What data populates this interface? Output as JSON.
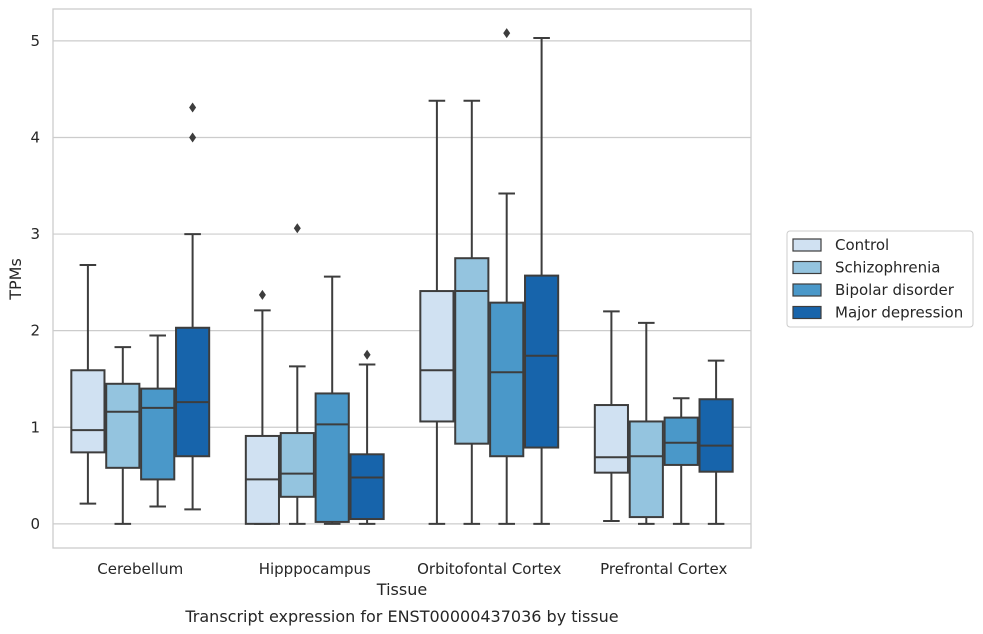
{
  "caption": "Transcript expression for ENST00000437036 by tissue",
  "chart_data": {
    "type": "box",
    "xlabel": "Tissue",
    "ylabel": "TPMs",
    "ylim": [
      -0.25,
      5.33
    ],
    "yticks": [
      0,
      1,
      2,
      3,
      4,
      5
    ],
    "grid": "horizontal",
    "legend_position": "right",
    "categories": [
      "Cerebellum",
      "Hipppocampus",
      "Orbitofontal Cortex",
      "Prefrontal Cortex"
    ],
    "series": [
      {
        "name": "Control",
        "color": "#d0e1f2",
        "boxes": [
          {
            "whislo": 0.21,
            "q1": 0.74,
            "med": 0.97,
            "q3": 1.59,
            "whishi": 2.68,
            "fliers": []
          },
          {
            "whislo": 0.0,
            "q1": 0.0,
            "med": 0.46,
            "q3": 0.91,
            "whishi": 2.21,
            "fliers": [
              2.37
            ]
          },
          {
            "whislo": 0.0,
            "q1": 1.06,
            "med": 1.59,
            "q3": 2.41,
            "whishi": 4.38,
            "fliers": []
          },
          {
            "whislo": 0.03,
            "q1": 0.53,
            "med": 0.69,
            "q3": 1.23,
            "whishi": 2.2,
            "fliers": []
          }
        ]
      },
      {
        "name": "Schizophrenia",
        "color": "#94c4df",
        "boxes": [
          {
            "whislo": 0.0,
            "q1": 0.58,
            "med": 1.16,
            "q3": 1.45,
            "whishi": 1.83,
            "fliers": []
          },
          {
            "whislo": 0.0,
            "q1": 0.28,
            "med": 0.52,
            "q3": 0.94,
            "whishi": 1.63,
            "fliers": [
              3.06
            ]
          },
          {
            "whislo": 0.0,
            "q1": 0.83,
            "med": 2.41,
            "q3": 2.75,
            "whishi": 4.38,
            "fliers": []
          },
          {
            "whislo": 0.0,
            "q1": 0.07,
            "med": 0.7,
            "q3": 1.06,
            "whishi": 2.08,
            "fliers": []
          }
        ]
      },
      {
        "name": "Bipolar disorder",
        "color": "#4a98c9",
        "boxes": [
          {
            "whislo": 0.18,
            "q1": 0.46,
            "med": 1.2,
            "q3": 1.4,
            "whishi": 1.95,
            "fliers": []
          },
          {
            "whislo": 0.0,
            "q1": 0.02,
            "med": 1.03,
            "q3": 1.35,
            "whishi": 2.56,
            "fliers": []
          },
          {
            "whislo": 0.0,
            "q1": 0.7,
            "med": 1.57,
            "q3": 2.29,
            "whishi": 3.42,
            "fliers": [
              5.08
            ]
          },
          {
            "whislo": 0.0,
            "q1": 0.61,
            "med": 0.84,
            "q3": 1.1,
            "whishi": 1.3,
            "fliers": []
          }
        ]
      },
      {
        "name": "Major depression",
        "color": "#1764ab",
        "boxes": [
          {
            "whislo": 0.15,
            "q1": 0.7,
            "med": 1.26,
            "q3": 2.03,
            "whishi": 3.0,
            "fliers": [
              4.0,
              4.31
            ]
          },
          {
            "whislo": 0.0,
            "q1": 0.05,
            "med": 0.48,
            "q3": 0.72,
            "whishi": 1.65,
            "fliers": [
              1.75
            ]
          },
          {
            "whislo": 0.0,
            "q1": 0.79,
            "med": 1.74,
            "q3": 2.57,
            "whishi": 5.03,
            "fliers": []
          },
          {
            "whislo": 0.0,
            "q1": 0.54,
            "med": 0.81,
            "q3": 1.29,
            "whishi": 1.69,
            "fliers": []
          }
        ]
      }
    ]
  }
}
